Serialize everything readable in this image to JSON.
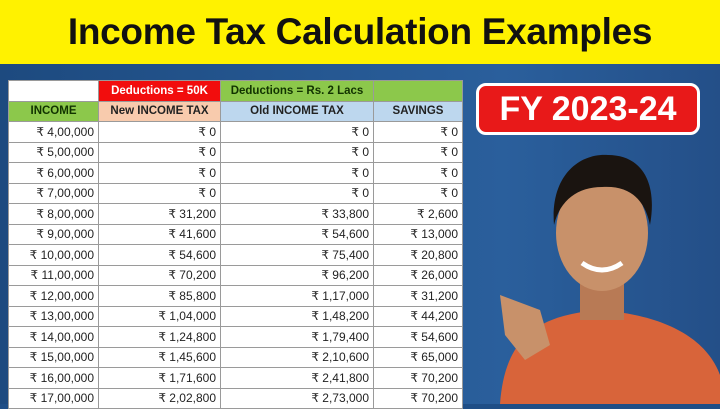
{
  "title": "Income Tax Calculation Examples",
  "badge": "FY 2023-24",
  "table": {
    "group_headers": [
      "",
      "Deductions = 50K",
      "Deductions = Rs. 2 Lacs",
      ""
    ],
    "headers": [
      "INCOME",
      "New INCOME TAX",
      "Old INCOME TAX",
      "SAVINGS"
    ],
    "rows": [
      [
        "₹ 4,00,000",
        "₹ 0",
        "₹ 0",
        "₹ 0"
      ],
      [
        "₹ 5,00,000",
        "₹ 0",
        "₹ 0",
        "₹ 0"
      ],
      [
        "₹ 6,00,000",
        "₹ 0",
        "₹ 0",
        "₹ 0"
      ],
      [
        "₹ 7,00,000",
        "₹ 0",
        "₹ 0",
        "₹ 0"
      ],
      [
        "₹ 8,00,000",
        "₹ 31,200",
        "₹ 33,800",
        "₹ 2,600"
      ],
      [
        "₹ 9,00,000",
        "₹ 41,600",
        "₹ 54,600",
        "₹ 13,000"
      ],
      [
        "₹ 10,00,000",
        "₹ 54,600",
        "₹ 75,400",
        "₹ 20,800"
      ],
      [
        "₹ 11,00,000",
        "₹ 70,200",
        "₹ 96,200",
        "₹ 26,000"
      ],
      [
        "₹ 12,00,000",
        "₹ 85,800",
        "₹ 1,17,000",
        "₹ 31,200"
      ],
      [
        "₹ 13,00,000",
        "₹ 1,04,000",
        "₹ 1,48,200",
        "₹ 44,200"
      ],
      [
        "₹ 14,00,000",
        "₹ 1,24,800",
        "₹ 1,79,400",
        "₹ 54,600"
      ],
      [
        "₹ 15,00,000",
        "₹ 1,45,600",
        "₹ 2,10,600",
        "₹ 65,000"
      ],
      [
        "₹ 16,00,000",
        "₹ 1,71,600",
        "₹ 2,41,800",
        "₹ 70,200"
      ],
      [
        "₹ 17,00,000",
        "₹ 2,02,800",
        "₹ 2,73,000",
        "₹ 70,200"
      ]
    ]
  },
  "colors": {
    "title_bg": "#fff200",
    "background": "#1f4e86",
    "badge": "#e81919",
    "header_green": "#8cc84b",
    "header_red": "#f20d0d"
  }
}
